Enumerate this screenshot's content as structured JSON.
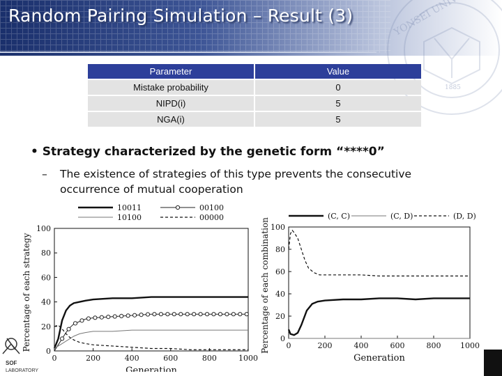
{
  "slide": {
    "title": "Random Pairing Simulation – Result (3)"
  },
  "parameter_table": {
    "headers": [
      "Parameter",
      "Value"
    ],
    "rows": [
      {
        "name": "Mistake probability",
        "value": "0"
      },
      {
        "name": "NIPD(i)",
        "value": "5"
      },
      {
        "name": "NGA(i)",
        "value": "5"
      }
    ]
  },
  "bullets": {
    "main": "Strategy characterized by the genetic form “****0”",
    "sub_dash": "–",
    "sub_line1": "The existence of strategies of this type prevents the consecutive",
    "sub_line2": "occurrence of mutual cooperation"
  },
  "seal": {
    "text": "YONSEI UNIVERSITY",
    "year": "1885"
  },
  "logo": {
    "line1": "SOF",
    "line2": "LABORATORY"
  },
  "chart_data": [
    {
      "type": "line",
      "xlabel": "Generation",
      "ylabel": "Percentage of each strategy",
      "xlim": [
        0,
        1000
      ],
      "ylim": [
        0,
        100
      ],
      "xticks": [
        "0",
        "200",
        "400",
        "600",
        "800",
        "1000"
      ],
      "yticks": [
        "0",
        "20",
        "40",
        "60",
        "80",
        "100"
      ],
      "legend": [
        "10011",
        "00100",
        "10100",
        "00000"
      ],
      "series": [
        {
          "name": "10011",
          "style": "solid-thick",
          "x": [
            0,
            20,
            40,
            60,
            80,
            100,
            130,
            160,
            200,
            300,
            400,
            500,
            600,
            700,
            800,
            900,
            1000
          ],
          "y": [
            2,
            10,
            25,
            33,
            37,
            39,
            40,
            41,
            42,
            43,
            43,
            44,
            44,
            44,
            44,
            44,
            44
          ]
        },
        {
          "name": "00100",
          "style": "circles",
          "x": [
            0,
            20,
            40,
            60,
            80,
            100,
            130,
            160,
            200,
            300,
            400,
            500,
            600,
            700,
            800,
            900,
            1000
          ],
          "y": [
            0,
            5,
            10,
            15,
            19,
            22,
            24,
            26,
            27,
            28,
            29,
            30,
            30,
            30,
            30,
            30,
            30
          ]
        },
        {
          "name": "10100",
          "style": "solid-thin",
          "x": [
            0,
            20,
            40,
            60,
            80,
            100,
            130,
            160,
            200,
            300,
            400,
            500,
            600,
            700,
            800,
            900,
            1000
          ],
          "y": [
            2,
            4,
            6,
            8,
            10,
            12,
            14,
            15,
            16,
            16,
            17,
            17,
            17,
            17,
            17,
            17,
            17
          ]
        },
        {
          "name": "00000",
          "style": "dashed",
          "x": [
            0,
            20,
            40,
            60,
            80,
            100,
            130,
            160,
            200,
            300,
            400,
            500,
            600,
            700,
            800,
            900,
            1000
          ],
          "y": [
            20,
            21,
            18,
            14,
            11,
            9,
            7,
            6,
            5,
            4,
            3,
            2,
            2,
            1,
            1,
            1,
            1
          ]
        }
      ]
    },
    {
      "type": "line",
      "xlabel": "Generation",
      "ylabel": "Percentage of each combination",
      "xlim": [
        0,
        1000
      ],
      "ylim": [
        0,
        100
      ],
      "xticks": [
        "0",
        "200",
        "400",
        "600",
        "800",
        "1000"
      ],
      "yticks": [
        "0",
        "20",
        "40",
        "60",
        "80",
        "100"
      ],
      "legend": [
        "(C, C)",
        "(C, D)",
        "(D, D)"
      ],
      "series": [
        {
          "name": "(C, C)",
          "style": "solid-thick",
          "x": [
            0,
            10,
            30,
            50,
            70,
            100,
            130,
            160,
            200,
            300,
            400,
            500,
            600,
            700,
            800,
            900,
            1000
          ],
          "y": [
            8,
            4,
            3,
            5,
            12,
            25,
            31,
            33,
            34,
            35,
            35,
            36,
            36,
            35,
            36,
            36,
            36
          ]
        },
        {
          "name": "(C, D)",
          "style": "solid-thin",
          "x": [
            0,
            1000
          ],
          "y": [
            0,
            0
          ]
        },
        {
          "name": "(D, D)",
          "style": "dashed",
          "x": [
            0,
            10,
            20,
            30,
            50,
            70,
            90,
            110,
            140,
            170,
            200,
            300,
            400,
            500,
            600,
            700,
            800,
            900,
            1000
          ],
          "y": [
            80,
            94,
            97,
            95,
            90,
            80,
            70,
            63,
            59,
            57,
            57,
            57,
            57,
            56,
            56,
            56,
            56,
            56,
            56
          ]
        }
      ]
    }
  ]
}
